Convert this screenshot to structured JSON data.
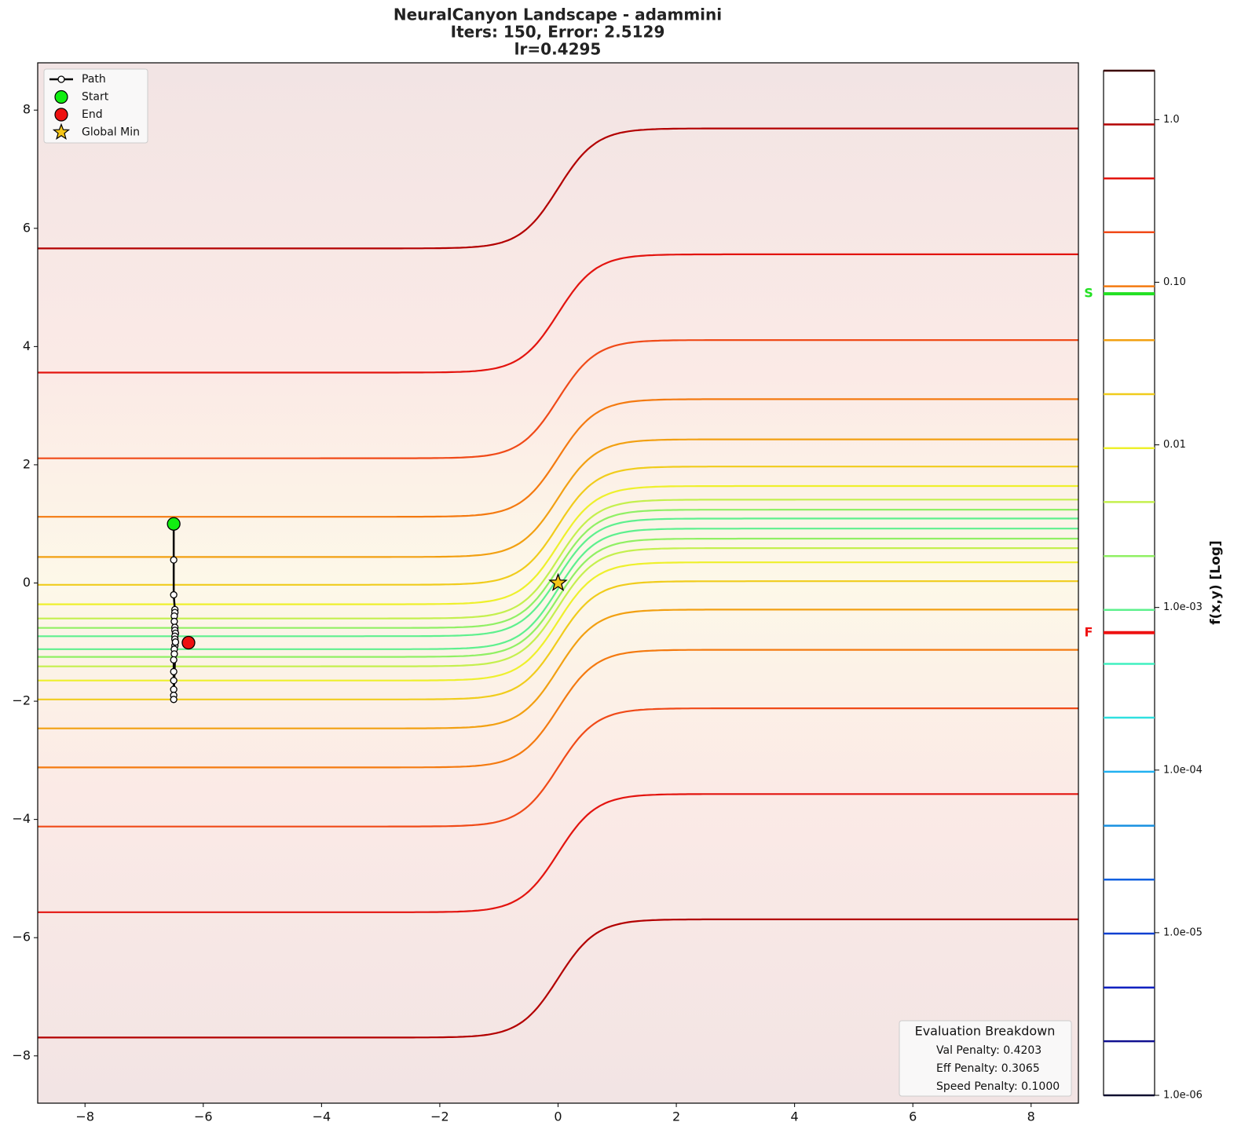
{
  "chart_data": {
    "type": "contour",
    "title": "NeuralCanyon Landscape - adammini",
    "subtitle": "Iters: 150, Error: 2.5129",
    "subtitle2": "lr=0.4295",
    "xlim": [
      -8.8,
      8.8
    ],
    "ylim": [
      -8.8,
      8.8
    ],
    "xticks": [
      {
        "value": -8,
        "label": "−8"
      },
      {
        "value": -6,
        "label": "−6"
      },
      {
        "value": -4,
        "label": "−4"
      },
      {
        "value": -2,
        "label": "−2"
      },
      0,
      2,
      4,
      6,
      8
    ],
    "yticks": [
      {
        "value": -8,
        "label": "−8"
      },
      {
        "value": -6,
        "label": "−6"
      },
      {
        "value": -4,
        "label": "−4"
      },
      {
        "value": -2,
        "label": "−2"
      },
      0,
      2,
      4,
      6,
      8
    ],
    "legend": "upper left",
    "contours": [
      {
        "level": 0.934,
        "color": "#b30000",
        "upper": [
          5.66,
          7.69
        ],
        "lower": [
          -7.69,
          -5.69
        ]
      },
      {
        "level": 0.435,
        "color": "#e3140f",
        "upper": [
          3.56,
          5.56
        ],
        "lower": [
          -5.57,
          -3.57
        ]
      },
      {
        "level": 0.203,
        "color": "#f04a18",
        "upper": [
          2.11,
          4.11
        ],
        "lower": [
          -4.12,
          -2.12
        ]
      },
      {
        "level": 0.0944,
        "color": "#f47a10",
        "upper": [
          1.12,
          3.11
        ],
        "lower": [
          -3.12,
          -1.13
        ]
      },
      {
        "level": 0.044,
        "color": "#f2a012",
        "upper": [
          0.44,
          2.43
        ],
        "lower": [
          -2.46,
          -0.45
        ]
      },
      {
        "level": 0.0205,
        "color": "#f0cc1c",
        "upper": [
          -0.03,
          1.97
        ],
        "lower": [
          -1.97,
          0.03
        ]
      },
      {
        "level": 0.00955,
        "color": "#eef02c",
        "upper": [
          -0.36,
          1.64
        ],
        "lower": [
          -1.65,
          0.35
        ]
      },
      {
        "level": 0.00445,
        "color": "#c4f04e",
        "upper": [
          -0.6,
          1.41
        ],
        "lower": [
          -1.41,
          0.59
        ]
      },
      {
        "level": 0.00207,
        "color": "#90f064",
        "upper": [
          -0.76,
          1.24
        ],
        "lower": [
          -1.25,
          0.75
        ]
      },
      {
        "level": 0.000966,
        "color": "#5ef08e",
        "upper": [
          -0.9,
          1.09
        ],
        "lower": [
          -1.12,
          0.92
        ]
      }
    ],
    "colorbar": {
      "label": "f(x,y) [Log]",
      "log": true,
      "lim": [
        1e-06,
        2.0
      ],
      "ticks": [
        {
          "value": 1,
          "label": "1.0"
        },
        {
          "value": 0.1,
          "label": "0.10"
        },
        {
          "value": 0.01,
          "label": "0.01"
        },
        {
          "value": 0.001,
          "label": "1.0e-03"
        },
        {
          "value": 0.0001,
          "label": "1.0e-04"
        },
        {
          "value": 1e-05,
          "label": "1.0e-05"
        },
        {
          "value": 1e-06,
          "label": "1.0e-06"
        }
      ],
      "levels": [
        1e-06,
        2.15e-06,
        4.6e-06,
        9.88e-06,
        2.12e-05,
        4.55e-05,
        9.77e-05,
        0.00021,
        0.00045,
        0.000966,
        0.00207,
        0.00445,
        0.00955,
        0.0205,
        0.044,
        0.0944,
        0.203,
        0.435,
        0.934,
        2.0
      ],
      "colors": [
        "#101030",
        "#101090",
        "#1020c0",
        "#1040d0",
        "#1060e0",
        "#1890e0",
        "#20b0f0",
        "#30e0e0",
        "#40f0c0",
        "#5ef08e",
        "#90f064",
        "#c4f04e",
        "#eef02c",
        "#f0cc1c",
        "#f2a012",
        "#f47a10",
        "#f04a18",
        "#e3140f",
        "#b30000",
        "#3b0000"
      ],
      "markers": [
        {
          "label": "S",
          "value": 0.085,
          "color": "#22e022"
        },
        {
          "label": "F",
          "value": 0.0007,
          "color": "#ee1111"
        }
      ]
    },
    "path": {
      "name": "Path",
      "color": "#000000",
      "x": [
        -6.5,
        -6.5,
        -6.5,
        -6.48,
        -6.48,
        -6.49,
        -6.49,
        -6.48,
        -6.48,
        -6.47,
        -6.48,
        -6.48,
        -6.47,
        -6.48,
        -6.49,
        -6.49,
        -6.5,
        -6.5,
        -6.5,
        -6.5,
        -6.5,
        -6.5,
        -6.47
      ],
      "y": [
        1.0,
        0.39,
        -0.2,
        -0.45,
        -0.5,
        -0.56,
        -0.65,
        -0.75,
        -0.8,
        -0.85,
        -0.9,
        -0.95,
        -1.0,
        -1.06,
        -1.12,
        -1.2,
        -1.3,
        -1.5,
        -1.65,
        -1.8,
        -1.9,
        -1.97,
        -1.0
      ]
    },
    "start": {
      "name": "Start",
      "x": -6.5,
      "y": 1.0,
      "color": "#11ee11"
    },
    "end": {
      "name": "End",
      "x": -6.25,
      "y": -1.01,
      "color": "#ee1111"
    },
    "global_min": {
      "name": "Global Min",
      "x": 0,
      "y": 0,
      "color": "#f5c518"
    },
    "evaluation": {
      "title": "Evaluation Breakdown",
      "lines": [
        "Val Penalty: 0.4203",
        "Eff Penalty: 0.3065",
        "Speed Penalty: 0.1000"
      ]
    }
  }
}
